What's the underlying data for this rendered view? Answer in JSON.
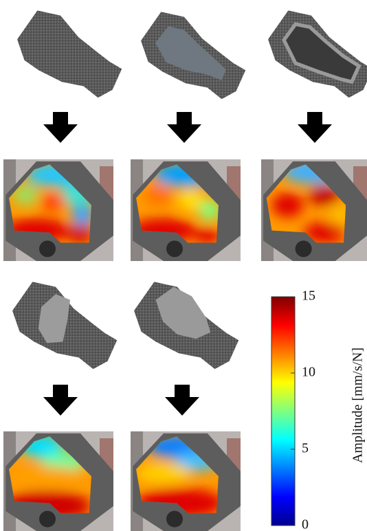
{
  "colorbar": {
    "label": "Amplitude [mm/s/N]",
    "lim": [
      0,
      15
    ],
    "ticks": [
      0,
      5,
      10,
      15
    ]
  }
}
